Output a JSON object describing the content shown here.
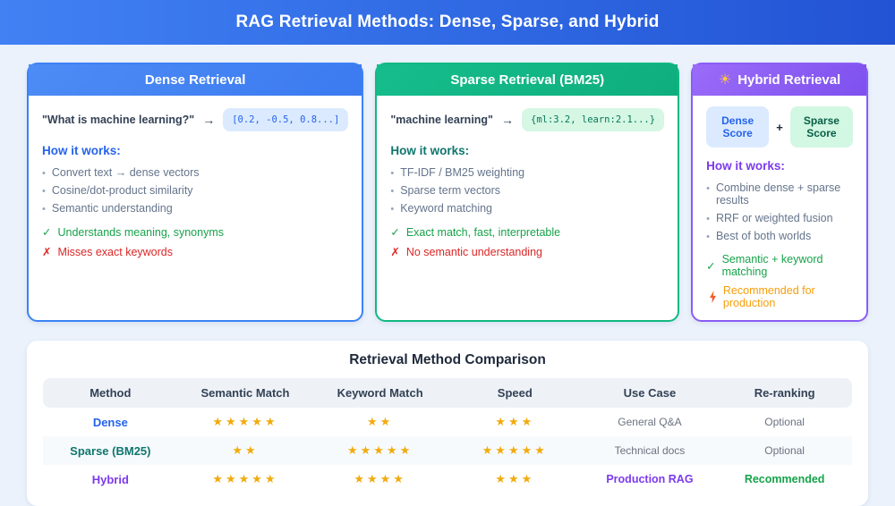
{
  "banner": {
    "title": "RAG Retrieval Methods: Dense, Sparse, and Hybrid"
  },
  "glyphs": {
    "bullet": "•",
    "arrow": "→",
    "check": "✓",
    "cross": "✗",
    "plus": "+",
    "sun": "☀",
    "star": "★"
  },
  "colors": {
    "banner_gradient_left": "#4181F4",
    "banner_gradient_right": "#2253D4",
    "dense_accent": "#3B82F6",
    "sparse_accent": "#10B981",
    "hybrid_accent": "#8B5CF6",
    "pro_green": "#16A34A",
    "con_red": "#DC2626",
    "highlight_orange": "#F59E0B",
    "star_gold": "#F1AB0E",
    "page_background": "#EBF2FB"
  },
  "cards": [
    {
      "title": "Dense Retrieval",
      "query": "\"What is machine learning?\"",
      "vector": "[0.2, -0.5, 0.8...]",
      "how_label": "How it works:",
      "bullets": [
        "Convert text → dense vectors",
        "Cosine/dot-product similarity",
        "Semantic understanding"
      ],
      "pro": "Understands meaning, synonyms",
      "con": "Misses exact keywords"
    },
    {
      "title": "Sparse Retrieval (BM25)",
      "query": "\"machine learning\"",
      "vector": "{ml:3.2, learn:2.1...}",
      "how_label": "How it works:",
      "bullets": [
        "TF-IDF / BM25 weighting",
        "Sparse term vectors",
        "Keyword matching"
      ],
      "pro": "Exact match, fast, interpretable",
      "con": "No semantic understanding"
    },
    {
      "title": "Hybrid Retrieval",
      "score_left": "Dense Score",
      "score_right": "Sparse Score",
      "how_label": "How it works:",
      "bullets": [
        "Combine dense + sparse results",
        "RRF or weighted fusion",
        "Best of both worlds"
      ],
      "pro": "Semantic + keyword matching",
      "highlight": "Recommended for production"
    }
  ],
  "comparison": {
    "title": "Retrieval Method Comparison",
    "headers": [
      "Method",
      "Semantic Match",
      "Keyword Match",
      "Speed",
      "Use Case",
      "Re-ranking"
    ],
    "rows": [
      {
        "method": "Dense",
        "semantic_stars": 5,
        "keyword_stars": 2,
        "speed_stars": 3,
        "use_case": "General Q&A",
        "reranking": "Optional"
      },
      {
        "method": "Sparse (BM25)",
        "semantic_stars": 2,
        "keyword_stars": 5,
        "speed_stars": 5,
        "use_case": "Technical docs",
        "reranking": "Optional"
      },
      {
        "method": "Hybrid",
        "semantic_stars": 5,
        "keyword_stars": 4,
        "speed_stars": 3,
        "use_case": "Production RAG",
        "reranking": "Recommended"
      }
    ]
  }
}
